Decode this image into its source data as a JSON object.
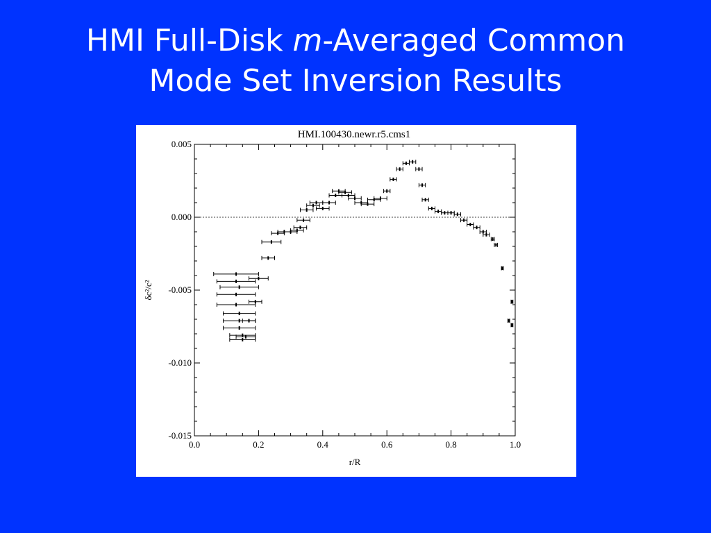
{
  "slide": {
    "title_line1_pre": "HMI Full-Disk ",
    "title_line1_italic": "m",
    "title_line1_post": "-Averaged Common",
    "title_line2": "Mode Set Inversion Results",
    "background_color": "#0033ff",
    "title_color": "#ffffff"
  },
  "chart_data": {
    "type": "scatter",
    "title": "HMI.100430.newr.r5.cms1",
    "xlabel": "r/R",
    "ylabel": "δc²/c²",
    "xlim": [
      0.0,
      1.0
    ],
    "ylim": [
      -0.015,
      0.005
    ],
    "x_ticks": [
      "0.0",
      "0.2",
      "0.4",
      "0.6",
      "0.8",
      "1.0"
    ],
    "y_ticks": [
      "0.005",
      "0.000",
      "-0.005",
      "-0.010",
      "-0.015"
    ],
    "reference_line": 0.0,
    "grid": false,
    "series": [
      {
        "marker": "point with horizontal error bars",
        "points": [
          {
            "x": 0.13,
            "y": -0.0039,
            "xerr": 0.07
          },
          {
            "x": 0.13,
            "y": -0.0044,
            "xerr": 0.06
          },
          {
            "x": 0.14,
            "y": -0.0048,
            "xerr": 0.06
          },
          {
            "x": 0.13,
            "y": -0.0053,
            "xerr": 0.06
          },
          {
            "x": 0.13,
            "y": -0.006,
            "xerr": 0.06
          },
          {
            "x": 0.14,
            "y": -0.0066,
            "xerr": 0.05
          },
          {
            "x": 0.14,
            "y": -0.0071,
            "xerr": 0.05
          },
          {
            "x": 0.14,
            "y": -0.0076,
            "xerr": 0.05
          },
          {
            "x": 0.15,
            "y": -0.0081,
            "xerr": 0.04
          },
          {
            "x": 0.15,
            "y": -0.0084,
            "xerr": 0.04
          },
          {
            "x": 0.16,
            "y": -0.0082,
            "xerr": 0.03
          },
          {
            "x": 0.17,
            "y": -0.0071,
            "xerr": 0.02
          },
          {
            "x": 0.19,
            "y": -0.0058,
            "xerr": 0.02
          },
          {
            "x": 0.2,
            "y": -0.0042,
            "xerr": 0.03
          },
          {
            "x": 0.23,
            "y": -0.0028,
            "xerr": 0.02
          },
          {
            "x": 0.24,
            "y": -0.0017,
            "xerr": 0.03
          },
          {
            "x": 0.26,
            "y": -0.0011,
            "xerr": 0.02
          },
          {
            "x": 0.28,
            "y": -0.001,
            "xerr": 0.02
          },
          {
            "x": 0.3,
            "y": -0.001,
            "xerr": 0.02
          },
          {
            "x": 0.32,
            "y": -0.0009,
            "xerr": 0.02
          },
          {
            "x": 0.33,
            "y": -0.0007,
            "xerr": 0.02
          },
          {
            "x": 0.34,
            "y": -0.0002,
            "xerr": 0.02
          },
          {
            "x": 0.35,
            "y": 0.0005,
            "xerr": 0.02
          },
          {
            "x": 0.37,
            "y": 0.0008,
            "xerr": 0.02
          },
          {
            "x": 0.38,
            "y": 0.001,
            "xerr": 0.02
          },
          {
            "x": 0.4,
            "y": 0.0006,
            "xerr": 0.02
          },
          {
            "x": 0.42,
            "y": 0.001,
            "xerr": 0.02
          },
          {
            "x": 0.44,
            "y": 0.0015,
            "xerr": 0.02
          },
          {
            "x": 0.45,
            "y": 0.0018,
            "xerr": 0.02
          },
          {
            "x": 0.47,
            "y": 0.0017,
            "xerr": 0.02
          },
          {
            "x": 0.48,
            "y": 0.0015,
            "xerr": 0.02
          },
          {
            "x": 0.5,
            "y": 0.0013,
            "xerr": 0.02
          },
          {
            "x": 0.52,
            "y": 0.001,
            "xerr": 0.02
          },
          {
            "x": 0.54,
            "y": 0.0009,
            "xerr": 0.02
          },
          {
            "x": 0.56,
            "y": 0.0012,
            "xerr": 0.02
          },
          {
            "x": 0.58,
            "y": 0.0013,
            "xerr": 0.02
          },
          {
            "x": 0.6,
            "y": 0.0018,
            "xerr": 0.01
          },
          {
            "x": 0.62,
            "y": 0.0026,
            "xerr": 0.01
          },
          {
            "x": 0.64,
            "y": 0.0033,
            "xerr": 0.01
          },
          {
            "x": 0.66,
            "y": 0.0037,
            "xerr": 0.01
          },
          {
            "x": 0.68,
            "y": 0.0038,
            "xerr": 0.01
          },
          {
            "x": 0.7,
            "y": 0.0033,
            "xerr": 0.01
          },
          {
            "x": 0.71,
            "y": 0.0022,
            "xerr": 0.01
          },
          {
            "x": 0.72,
            "y": 0.0012,
            "xerr": 0.01
          },
          {
            "x": 0.74,
            "y": 0.0006,
            "xerr": 0.01
          },
          {
            "x": 0.76,
            "y": 0.0004,
            "xerr": 0.01
          },
          {
            "x": 0.78,
            "y": 0.0003,
            "xerr": 0.01
          },
          {
            "x": 0.8,
            "y": 0.0003,
            "xerr": 0.01
          },
          {
            "x": 0.82,
            "y": 0.0002,
            "xerr": 0.01
          },
          {
            "x": 0.84,
            "y": -0.0002,
            "xerr": 0.01
          },
          {
            "x": 0.86,
            "y": -0.0005,
            "xerr": 0.01
          },
          {
            "x": 0.88,
            "y": -0.0007,
            "xerr": 0.01
          },
          {
            "x": 0.9,
            "y": -0.001,
            "xerr": 0.01
          },
          {
            "x": 0.91,
            "y": -0.0012,
            "xerr": 0.01
          },
          {
            "x": 0.93,
            "y": -0.0015,
            "xerr": 0.005
          },
          {
            "x": 0.94,
            "y": -0.0019,
            "xerr": 0.005
          },
          {
            "x": 0.96,
            "y": -0.0035,
            "xerr": 0.003
          },
          {
            "x": 0.99,
            "y": -0.0058,
            "xerr": 0.003
          },
          {
            "x": 0.98,
            "y": -0.0071,
            "xerr": 0.003
          },
          {
            "x": 0.99,
            "y": -0.0074,
            "xerr": 0.003
          }
        ]
      }
    ]
  }
}
